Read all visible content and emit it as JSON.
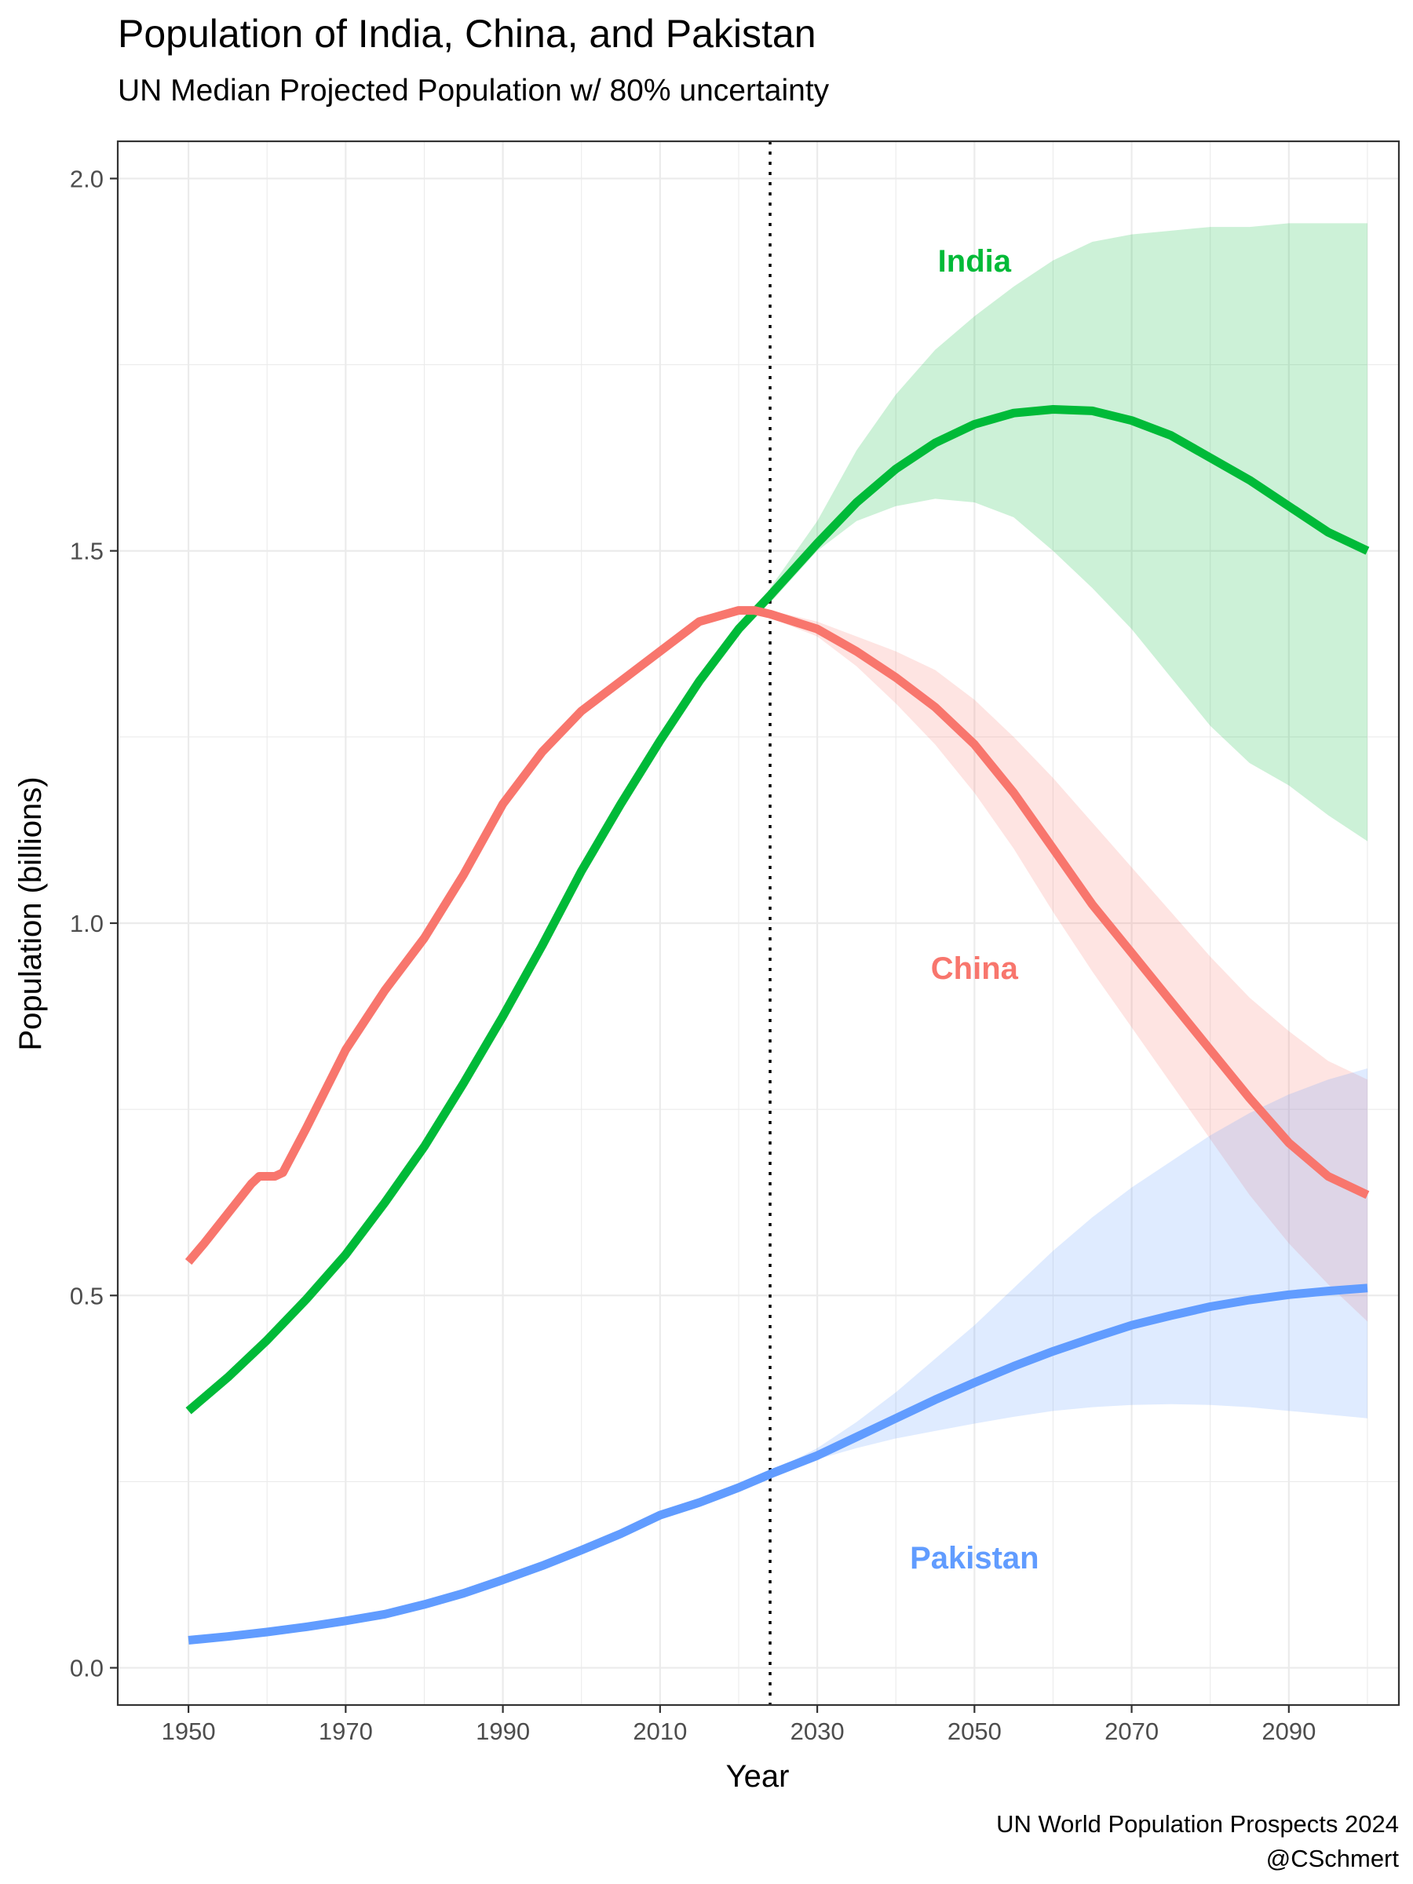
{
  "chart_data": {
    "type": "line",
    "title": "Population of India, China, and Pakistan",
    "subtitle": "UN Median Projected Population w/ 80% uncertainty",
    "xlabel": "Year",
    "ylabel": "Population (billions)",
    "xlim": [
      1941,
      2104
    ],
    "ylim": [
      -0.05,
      2.05
    ],
    "x_ticks": [
      1950,
      1970,
      1990,
      2010,
      2030,
      2050,
      2070,
      2090
    ],
    "y_ticks": [
      0.0,
      0.5,
      1.0,
      1.5,
      2.0
    ],
    "x_tick_labels": [
      "1950",
      "1970",
      "1990",
      "2010",
      "2030",
      "2050",
      "2070",
      "2090"
    ],
    "y_tick_labels": [
      "0.0",
      "0.5",
      "1.0",
      "1.5",
      "2.0"
    ],
    "grid": true,
    "reference_line": {
      "x": 2024,
      "style": "dotted"
    },
    "caption": [
      "UN World Population Prospects 2024",
      "@CSchmert"
    ],
    "series": [
      {
        "name": "India",
        "color": "#00ba38",
        "label_pos": {
          "x": 2050,
          "y": 1.89
        },
        "x": [
          1950,
          1955,
          1960,
          1965,
          1970,
          1975,
          1980,
          1985,
          1990,
          1995,
          2000,
          2005,
          2010,
          2015,
          2020,
          2024,
          2030,
          2035,
          2040,
          2045,
          2050,
          2055,
          2060,
          2065,
          2070,
          2075,
          2080,
          2085,
          2090,
          2095,
          2100
        ],
        "y": [
          0.345,
          0.39,
          0.44,
          0.495,
          0.555,
          0.625,
          0.7,
          0.785,
          0.875,
          0.97,
          1.07,
          1.16,
          1.245,
          1.325,
          1.395,
          1.44,
          1.51,
          1.565,
          1.61,
          1.645,
          1.67,
          1.685,
          1.69,
          1.688,
          1.675,
          1.655,
          1.625,
          1.595,
          1.56,
          1.525,
          1.5
        ],
        "band_x": [
          2024,
          2030,
          2035,
          2040,
          2045,
          2050,
          2055,
          2060,
          2065,
          2070,
          2075,
          2080,
          2085,
          2090,
          2095,
          2100
        ],
        "band_low": [
          1.43,
          1.5,
          1.54,
          1.56,
          1.57,
          1.565,
          1.545,
          1.5,
          1.45,
          1.395,
          1.33,
          1.265,
          1.215,
          1.185,
          1.145,
          1.11
        ],
        "band_high": [
          1.45,
          1.54,
          1.635,
          1.71,
          1.77,
          1.815,
          1.855,
          1.89,
          1.915,
          1.925,
          1.93,
          1.935,
          1.935,
          1.94,
          1.94,
          1.94
        ]
      },
      {
        "name": "China",
        "color": "#f8766d",
        "label_pos": {
          "x": 2050,
          "y": 0.94
        },
        "x": [
          1950,
          1952,
          1955,
          1958,
          1959,
          1960,
          1961,
          1962,
          1965,
          1970,
          1975,
          1980,
          1985,
          1990,
          1995,
          2000,
          2005,
          2010,
          2015,
          2020,
          2022,
          2024,
          2030,
          2035,
          2040,
          2045,
          2050,
          2055,
          2060,
          2065,
          2070,
          2075,
          2080,
          2085,
          2090,
          2095,
          2100
        ],
        "y": [
          0.545,
          0.57,
          0.61,
          0.65,
          0.66,
          0.66,
          0.66,
          0.665,
          0.725,
          0.83,
          0.91,
          0.98,
          1.065,
          1.16,
          1.23,
          1.285,
          1.325,
          1.365,
          1.405,
          1.42,
          1.42,
          1.415,
          1.395,
          1.365,
          1.33,
          1.29,
          1.24,
          1.175,
          1.1,
          1.025,
          0.96,
          0.895,
          0.83,
          0.765,
          0.705,
          0.66,
          0.635
        ],
        "band_x": [
          2024,
          2030,
          2035,
          2040,
          2045,
          2050,
          2055,
          2060,
          2065,
          2070,
          2075,
          2080,
          2085,
          2090,
          2095,
          2100
        ],
        "band_low": [
          1.41,
          1.385,
          1.345,
          1.295,
          1.24,
          1.175,
          1.1,
          1.015,
          0.935,
          0.86,
          0.785,
          0.71,
          0.635,
          0.57,
          0.515,
          0.465
        ],
        "band_high": [
          1.42,
          1.405,
          1.385,
          1.365,
          1.34,
          1.3,
          1.25,
          1.195,
          1.135,
          1.075,
          1.015,
          0.955,
          0.9,
          0.855,
          0.815,
          0.79
        ]
      },
      {
        "name": "Pakistan",
        "color": "#619cff",
        "label_pos": {
          "x": 2050,
          "y": 0.148
        },
        "x": [
          1950,
          1955,
          1960,
          1965,
          1970,
          1975,
          1980,
          1985,
          1990,
          1995,
          2000,
          2005,
          2010,
          2015,
          2020,
          2024,
          2030,
          2035,
          2040,
          2045,
          2050,
          2055,
          2060,
          2065,
          2070,
          2075,
          2080,
          2085,
          2090,
          2095,
          2100
        ],
        "y": [
          0.037,
          0.042,
          0.048,
          0.055,
          0.063,
          0.072,
          0.085,
          0.1,
          0.118,
          0.137,
          0.158,
          0.18,
          0.205,
          0.222,
          0.242,
          0.26,
          0.285,
          0.31,
          0.335,
          0.36,
          0.383,
          0.405,
          0.425,
          0.443,
          0.46,
          0.473,
          0.485,
          0.494,
          0.501,
          0.506,
          0.51
        ],
        "band_x": [
          2024,
          2030,
          2035,
          2040,
          2045,
          2050,
          2055,
          2060,
          2065,
          2070,
          2075,
          2080,
          2085,
          2090,
          2095,
          2100
        ],
        "band_low": [
          0.258,
          0.28,
          0.295,
          0.308,
          0.318,
          0.328,
          0.337,
          0.345,
          0.35,
          0.353,
          0.354,
          0.353,
          0.35,
          0.345,
          0.34,
          0.335
        ],
        "band_high": [
          0.262,
          0.295,
          0.33,
          0.37,
          0.415,
          0.46,
          0.51,
          0.56,
          0.605,
          0.645,
          0.68,
          0.715,
          0.745,
          0.77,
          0.79,
          0.805
        ]
      }
    ]
  }
}
